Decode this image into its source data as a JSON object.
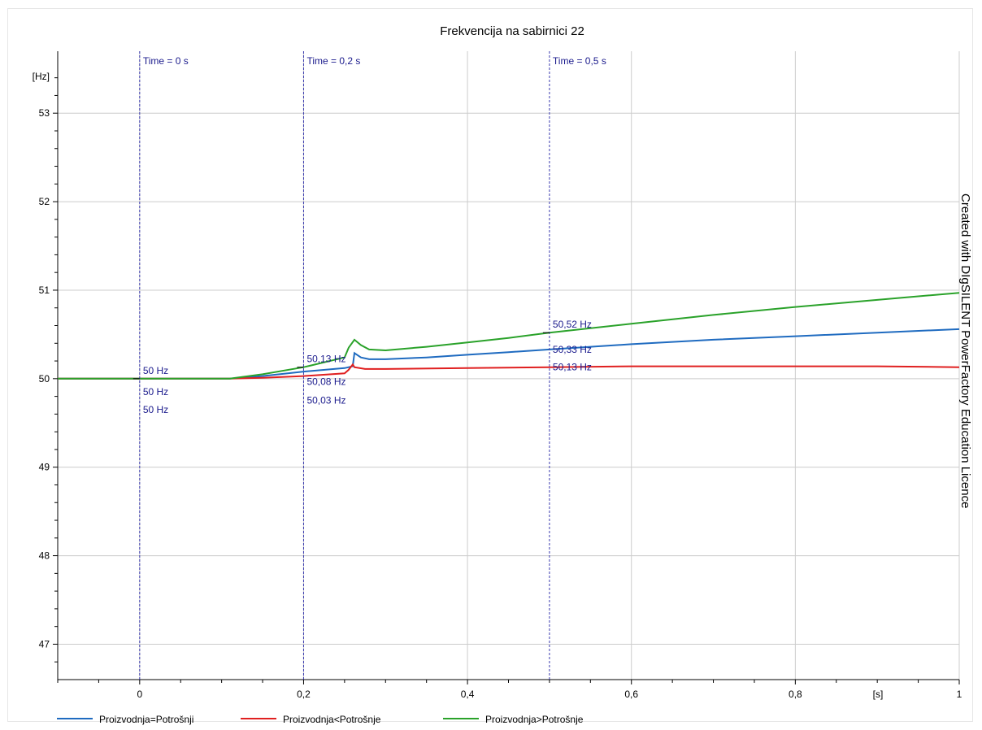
{
  "chart_data": {
    "type": "line",
    "title": "Frekvencija na sabirnici 22",
    "ylabel": "[Hz]",
    "xlabel": "[s]",
    "xlim": [
      -0.1,
      1.0
    ],
    "ylim": [
      46.6,
      53.7
    ],
    "xticks": [
      {
        "value": 0,
        "label": "0"
      },
      {
        "value": 0.2,
        "label": "0,2"
      },
      {
        "value": 0.4,
        "label": "0,4"
      },
      {
        "value": 0.6,
        "label": "0,6"
      },
      {
        "value": 0.8,
        "label": "0,8"
      },
      {
        "value": 1.0,
        "label": "1"
      }
    ],
    "yticks": [
      {
        "value": 47,
        "label": "47"
      },
      {
        "value": 48,
        "label": "48"
      },
      {
        "value": 49,
        "label": "49"
      },
      {
        "value": 50,
        "label": "50"
      },
      {
        "value": 51,
        "label": "51"
      },
      {
        "value": 52,
        "label": "52"
      },
      {
        "value": 53,
        "label": "53"
      }
    ],
    "grid": true,
    "legend_position": "bottom",
    "series": [
      {
        "name": "Proizvodnja=Potrošnji",
        "color": "#1f6bc0",
        "points": [
          [
            -0.1,
            50
          ],
          [
            0,
            50
          ],
          [
            0.11,
            50
          ],
          [
            0.15,
            50.03
          ],
          [
            0.2,
            50.08
          ],
          [
            0.25,
            50.12
          ],
          [
            0.26,
            50.14
          ],
          [
            0.262,
            50.29
          ],
          [
            0.27,
            50.24
          ],
          [
            0.28,
            50.22
          ],
          [
            0.3,
            50.22
          ],
          [
            0.35,
            50.24
          ],
          [
            0.4,
            50.27
          ],
          [
            0.45,
            50.3
          ],
          [
            0.5,
            50.33
          ],
          [
            0.6,
            50.39
          ],
          [
            0.7,
            50.44
          ],
          [
            0.8,
            50.48
          ],
          [
            0.9,
            50.52
          ],
          [
            1.0,
            50.56
          ]
        ]
      },
      {
        "name": "Proizvodnja<Potrošnje",
        "color": "#e02020",
        "points": [
          [
            -0.1,
            50
          ],
          [
            0,
            50
          ],
          [
            0.11,
            50
          ],
          [
            0.15,
            50.01
          ],
          [
            0.2,
            50.03
          ],
          [
            0.25,
            50.06
          ],
          [
            0.255,
            50.1
          ],
          [
            0.26,
            50.16
          ],
          [
            0.262,
            50.13
          ],
          [
            0.275,
            50.11
          ],
          [
            0.3,
            50.11
          ],
          [
            0.4,
            50.12
          ],
          [
            0.5,
            50.13
          ],
          [
            0.6,
            50.14
          ],
          [
            0.7,
            50.14
          ],
          [
            0.8,
            50.14
          ],
          [
            0.9,
            50.14
          ],
          [
            1.0,
            50.13
          ]
        ]
      },
      {
        "name": "Proizvodnja>Potrošnje",
        "color": "#2aa22a",
        "points": [
          [
            -0.1,
            50
          ],
          [
            0,
            50
          ],
          [
            0.11,
            50
          ],
          [
            0.15,
            50.05
          ],
          [
            0.2,
            50.13
          ],
          [
            0.25,
            50.24
          ],
          [
            0.255,
            50.35
          ],
          [
            0.262,
            50.44
          ],
          [
            0.27,
            50.38
          ],
          [
            0.28,
            50.33
          ],
          [
            0.3,
            50.32
          ],
          [
            0.35,
            50.36
          ],
          [
            0.4,
            50.41
          ],
          [
            0.45,
            50.46
          ],
          [
            0.5,
            50.52
          ],
          [
            0.6,
            50.62
          ],
          [
            0.7,
            50.72
          ],
          [
            0.8,
            50.81
          ],
          [
            0.9,
            50.89
          ],
          [
            1.0,
            50.97
          ]
        ]
      }
    ],
    "markers": [
      {
        "label": "Time = 0 s",
        "x": 0,
        "values": [
          "50 Hz",
          "50 Hz",
          "50 Hz"
        ]
      },
      {
        "label": "Time = 0,2 s",
        "x": 0.2,
        "values": [
          "50,13 Hz",
          "50,08 Hz",
          "50,03 Hz"
        ]
      },
      {
        "label": "Time = 0,5 s",
        "x": 0.5,
        "values": [
          "50,52 Hz",
          "50,33 Hz",
          "50,13 Hz"
        ]
      }
    ]
  },
  "watermark": "Created with DIgSILENT PowerFactory Education Licence"
}
